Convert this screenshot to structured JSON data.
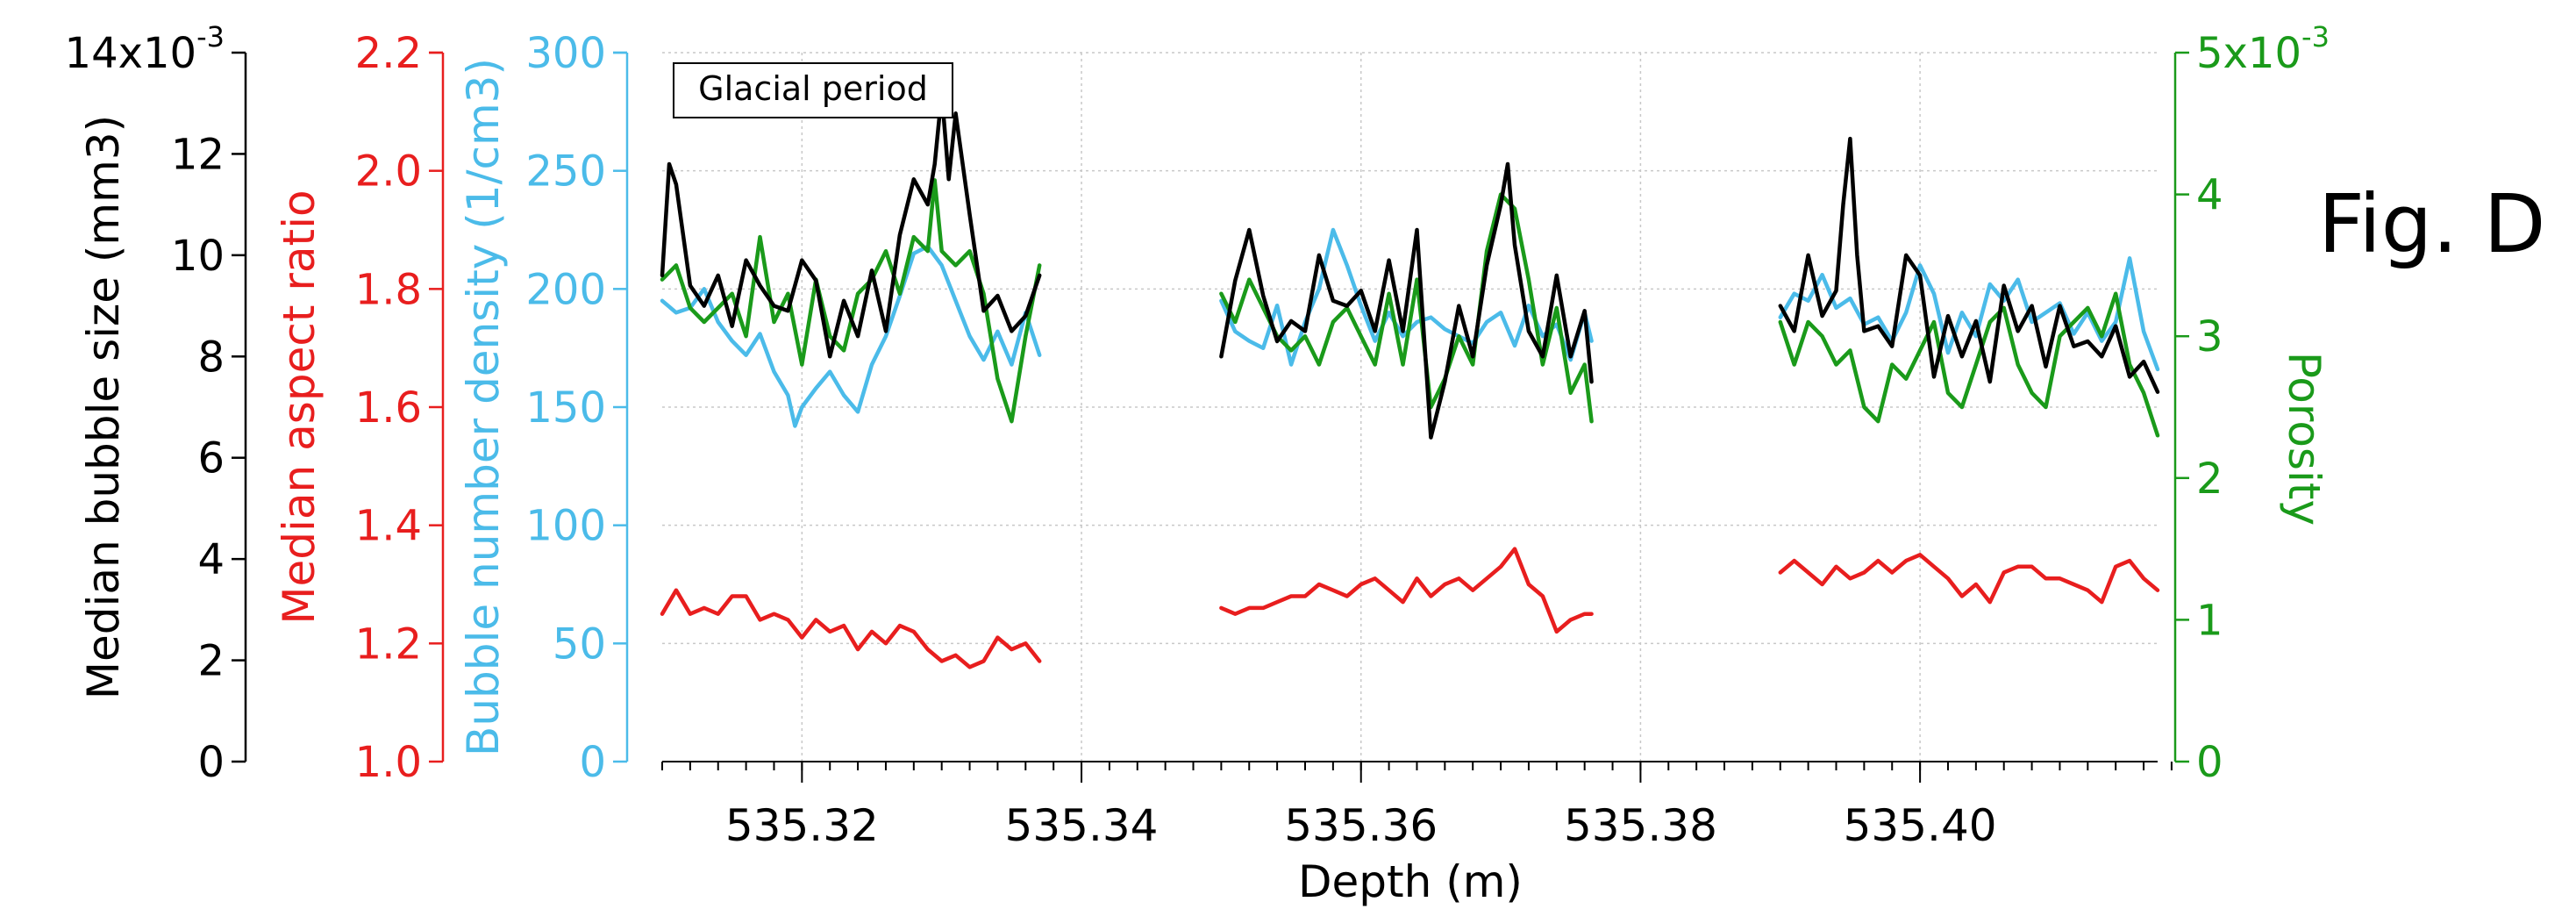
{
  "figure_label": "Fig. D",
  "colors": {
    "size": "#000000",
    "aspect": "#e81e1e",
    "density": "#4bbbe9",
    "porosity": "#1a9a1a",
    "grid": "#c8c8c8"
  },
  "chart_data": {
    "type": "line",
    "annotation": "Glacial period",
    "xlabel": "Depth (m)",
    "xlim": [
      535.31,
      535.417
    ],
    "xticks": [
      "535.32",
      "535.34",
      "535.36",
      "535.38",
      "535.40"
    ],
    "xtick_values": [
      535.32,
      535.34,
      535.36,
      535.38,
      535.4
    ],
    "grid": true,
    "axes": {
      "size": {
        "label": "Median bubble size (mm3)",
        "ylim": [
          0,
          14
        ],
        "ticks": [
          "0",
          "2",
          "4",
          "6",
          "8",
          "10",
          "12"
        ],
        "tick_values": [
          0,
          2,
          4,
          6,
          8,
          10,
          12
        ],
        "top_label": "14x10",
        "top_exp": "-3"
      },
      "aspect": {
        "label": "Median aspect ratio",
        "ylim": [
          1.0,
          2.2
        ],
        "ticks": [
          "1.0",
          "1.2",
          "1.4",
          "1.6",
          "1.8",
          "2.0",
          "2.2"
        ],
        "tick_values": [
          1.0,
          1.2,
          1.4,
          1.6,
          1.8,
          2.0,
          2.2
        ]
      },
      "density": {
        "label": "Bubble number density (1/cm3)",
        "ylim": [
          0,
          300
        ],
        "ticks": [
          "0",
          "50",
          "100",
          "150",
          "200",
          "250",
          "300"
        ],
        "tick_values": [
          0,
          50,
          100,
          150,
          200,
          250,
          300
        ]
      },
      "porosity": {
        "label": "Porosity",
        "ylim": [
          0,
          5
        ],
        "ticks": [
          "0",
          "1",
          "2",
          "3",
          "4"
        ],
        "tick_values": [
          0,
          1,
          2,
          3,
          4
        ],
        "top_label": "5x10",
        "top_exp": "-3"
      }
    },
    "series": [
      {
        "axis": "size",
        "segments": [
          {
            "x": [
              535.31,
              535.3105,
              535.311,
              535.312,
              535.313,
              535.314,
              535.315,
              535.316,
              535.317,
              535.318,
              535.319,
              535.32,
              535.321,
              535.322,
              535.323,
              535.324,
              535.325,
              535.326,
              535.327,
              535.328,
              535.329,
              535.3295,
              535.33,
              535.3305,
              535.331,
              535.332,
              535.333,
              535.334,
              535.335,
              535.336,
              535.337
            ],
            "y": [
              9.6,
              11.8,
              11.4,
              9.4,
              9.0,
              9.6,
              8.6,
              9.9,
              9.4,
              9.0,
              8.9,
              9.9,
              9.5,
              8.0,
              9.1,
              8.4,
              9.7,
              8.5,
              10.4,
              11.5,
              11.0,
              11.8,
              13.2,
              11.5,
              12.8,
              10.8,
              8.9,
              9.2,
              8.5,
              8.8,
              9.6
            ]
          },
          {
            "x": [
              535.35,
              535.351,
              535.352,
              535.353,
              535.354,
              535.355,
              535.356,
              535.357,
              535.358,
              535.359,
              535.36,
              535.361,
              535.362,
              535.363,
              535.364,
              535.365,
              535.366,
              535.367,
              535.368,
              535.369,
              535.37,
              535.3705,
              535.371,
              535.372,
              535.373,
              535.374,
              535.375,
              535.376,
              535.3765
            ],
            "y": [
              8.0,
              9.5,
              10.5,
              9.2,
              8.3,
              8.7,
              8.5,
              10.0,
              9.1,
              9.0,
              9.3,
              8.5,
              9.9,
              8.5,
              10.5,
              6.4,
              7.5,
              9.0,
              8.0,
              9.8,
              11.0,
              11.8,
              10.2,
              8.5,
              8.0,
              9.6,
              8.0,
              8.9,
              7.5
            ]
          },
          {
            "x": [
              535.39,
              535.391,
              535.392,
              535.393,
              535.394,
              535.3945,
              535.395,
              535.3955,
              535.396,
              535.397,
              535.398,
              535.399,
              535.4,
              535.401,
              535.402,
              535.403,
              535.404,
              535.405,
              535.406,
              535.407,
              535.408,
              535.409,
              535.41,
              535.411,
              535.412,
              535.413,
              535.414,
              535.415,
              535.416,
              535.417
            ],
            "y": [
              9.0,
              8.5,
              10.0,
              8.8,
              9.3,
              11.0,
              12.3,
              10.0,
              8.5,
              8.6,
              8.2,
              10.0,
              9.6,
              7.6,
              8.8,
              8.0,
              8.7,
              7.5,
              9.4,
              8.5,
              9.0,
              7.8,
              9.0,
              8.2,
              8.3,
              8.0,
              8.6,
              7.6,
              7.9,
              7.3
            ]
          }
        ]
      },
      {
        "axis": "aspect",
        "segments": [
          {
            "x": [
              535.31,
              535.311,
              535.312,
              535.313,
              535.314,
              535.315,
              535.316,
              535.317,
              535.318,
              535.319,
              535.32,
              535.321,
              535.322,
              535.323,
              535.324,
              535.325,
              535.326,
              535.327,
              535.328,
              535.329,
              535.33,
              535.331,
              535.332,
              535.333,
              535.334,
              535.335,
              535.336,
              535.337
            ],
            "y": [
              1.25,
              1.29,
              1.25,
              1.26,
              1.25,
              1.28,
              1.28,
              1.24,
              1.25,
              1.24,
              1.21,
              1.24,
              1.22,
              1.23,
              1.19,
              1.22,
              1.2,
              1.23,
              1.22,
              1.19,
              1.17,
              1.18,
              1.16,
              1.17,
              1.21,
              1.19,
              1.2,
              1.17
            ]
          },
          {
            "x": [
              535.35,
              535.351,
              535.352,
              535.353,
              535.354,
              535.355,
              535.356,
              535.357,
              535.358,
              535.359,
              535.36,
              535.361,
              535.362,
              535.363,
              535.364,
              535.365,
              535.366,
              535.367,
              535.368,
              535.369,
              535.37,
              535.371,
              535.372,
              535.373,
              535.374,
              535.375,
              535.376,
              535.3765
            ],
            "y": [
              1.26,
              1.25,
              1.26,
              1.26,
              1.27,
              1.28,
              1.28,
              1.3,
              1.29,
              1.28,
              1.3,
              1.31,
              1.29,
              1.27,
              1.31,
              1.28,
              1.3,
              1.31,
              1.29,
              1.31,
              1.33,
              1.36,
              1.3,
              1.28,
              1.22,
              1.24,
              1.25,
              1.25
            ]
          },
          {
            "x": [
              535.39,
              535.391,
              535.392,
              535.393,
              535.394,
              535.395,
              535.396,
              535.397,
              535.398,
              535.399,
              535.4,
              535.401,
              535.402,
              535.403,
              535.404,
              535.405,
              535.406,
              535.407,
              535.408,
              535.409,
              535.41,
              535.411,
              535.412,
              535.413,
              535.414,
              535.415,
              535.416,
              535.417
            ],
            "y": [
              1.32,
              1.34,
              1.32,
              1.3,
              1.33,
              1.31,
              1.32,
              1.34,
              1.32,
              1.34,
              1.35,
              1.33,
              1.31,
              1.28,
              1.3,
              1.27,
              1.32,
              1.33,
              1.33,
              1.31,
              1.31,
              1.3,
              1.29,
              1.27,
              1.33,
              1.34,
              1.31,
              1.29
            ]
          }
        ]
      },
      {
        "axis": "density",
        "segments": [
          {
            "x": [
              535.31,
              535.311,
              535.312,
              535.313,
              535.314,
              535.315,
              535.316,
              535.317,
              535.318,
              535.319,
              535.3195,
              535.32,
              535.321,
              535.322,
              535.323,
              535.324,
              535.325,
              535.326,
              535.327,
              535.328,
              535.329,
              535.33,
              535.331,
              535.332,
              535.333,
              535.334,
              535.335,
              535.336,
              535.337
            ],
            "y": [
              195,
              190,
              192,
              200,
              186,
              178,
              172,
              181,
              165,
              155,
              142,
              150,
              158,
              165,
              155,
              148,
              168,
              180,
              197,
              215,
              218,
              210,
              195,
              180,
              170,
              182,
              168,
              190,
              172
            ]
          },
          {
            "x": [
              535.35,
              535.351,
              535.352,
              535.353,
              535.354,
              535.355,
              535.356,
              535.357,
              535.358,
              535.359,
              535.36,
              535.361,
              535.362,
              535.363,
              535.364,
              535.365,
              535.366,
              535.367,
              535.368,
              535.369,
              535.37,
              535.371,
              535.372,
              535.373,
              535.374,
              535.375,
              535.376,
              535.3765
            ],
            "y": [
              195,
              182,
              178,
              175,
              193,
              168,
              186,
              200,
              225,
              210,
              193,
              178,
              190,
              180,
              186,
              188,
              183,
              180,
              177,
              186,
              190,
              176,
              193,
              180,
              185,
              170,
              190,
              178
            ]
          },
          {
            "x": [
              535.39,
              535.391,
              535.392,
              535.393,
              535.394,
              535.395,
              535.396,
              535.397,
              535.398,
              535.399,
              535.4,
              535.401,
              535.402,
              535.403,
              535.404,
              535.405,
              535.406,
              535.407,
              535.408,
              535.409,
              535.41,
              535.411,
              535.412,
              535.413,
              535.414,
              535.415,
              535.416,
              535.417
            ],
            "y": [
              188,
              198,
              195,
              206,
              192,
              196,
              185,
              188,
              178,
              190,
              210,
              198,
              173,
              190,
              180,
              202,
              195,
              204,
              186,
              190,
              194,
              181,
              190,
              178,
              186,
              213,
              182,
              166
            ]
          }
        ]
      },
      {
        "axis": "porosity",
        "segments": [
          {
            "x": [
              535.31,
              535.311,
              535.312,
              535.313,
              535.314,
              535.315,
              535.316,
              535.317,
              535.318,
              535.319,
              535.32,
              535.321,
              535.322,
              535.323,
              535.324,
              535.325,
              535.326,
              535.327,
              535.328,
              535.329,
              535.3295,
              535.33,
              535.331,
              535.332,
              535.333,
              535.334,
              535.335,
              535.336,
              535.337
            ],
            "y": [
              3.4,
              3.5,
              3.2,
              3.1,
              3.2,
              3.3,
              3.0,
              3.7,
              3.1,
              3.3,
              2.8,
              3.4,
              3.0,
              2.9,
              3.3,
              3.4,
              3.6,
              3.3,
              3.7,
              3.6,
              4.1,
              3.6,
              3.5,
              3.6,
              3.3,
              2.7,
              2.4,
              3.0,
              3.5
            ]
          },
          {
            "x": [
              535.35,
              535.351,
              535.352,
              535.353,
              535.354,
              535.355,
              535.356,
              535.357,
              535.358,
              535.359,
              535.36,
              535.361,
              535.362,
              535.363,
              535.364,
              535.365,
              535.366,
              535.367,
              535.368,
              535.369,
              535.37,
              535.371,
              535.372,
              535.373,
              535.374,
              535.375,
              535.376,
              535.3765
            ],
            "y": [
              3.3,
              3.1,
              3.4,
              3.2,
              3.0,
              2.9,
              3.0,
              2.8,
              3.1,
              3.2,
              3.0,
              2.8,
              3.3,
              2.8,
              3.4,
              2.5,
              2.7,
              3.0,
              2.8,
              3.6,
              4.0,
              3.9,
              3.4,
              2.8,
              3.2,
              2.6,
              2.8,
              2.4
            ]
          },
          {
            "x": [
              535.39,
              535.391,
              535.392,
              535.393,
              535.394,
              535.395,
              535.396,
              535.397,
              535.398,
              535.399,
              535.4,
              535.401,
              535.402,
              535.403,
              535.404,
              535.405,
              535.406,
              535.407,
              535.408,
              535.409,
              535.41,
              535.411,
              535.412,
              535.413,
              535.414,
              535.415,
              535.416,
              535.417
            ],
            "y": [
              3.1,
              2.8,
              3.1,
              3.0,
              2.8,
              2.9,
              2.5,
              2.4,
              2.8,
              2.7,
              2.9,
              3.1,
              2.6,
              2.5,
              2.8,
              3.1,
              3.2,
              2.8,
              2.6,
              2.5,
              3.0,
              3.1,
              3.2,
              3.0,
              3.3,
              2.8,
              2.6,
              2.3
            ]
          }
        ]
      }
    ]
  }
}
